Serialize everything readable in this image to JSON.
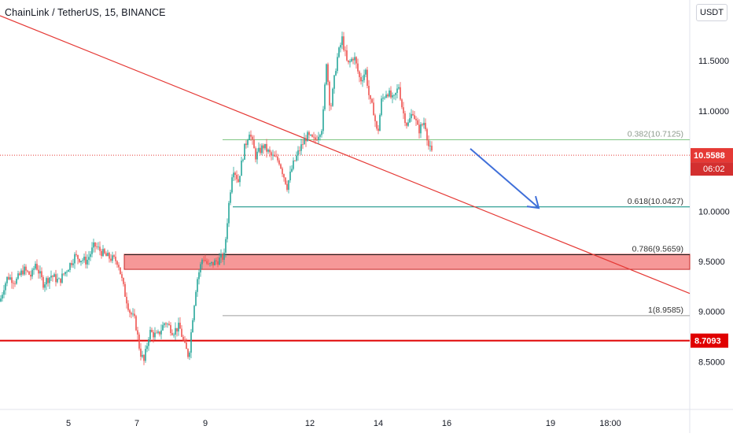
{
  "header": {
    "title": "ChainLink / TetherUS, 15, BINANCE",
    "currency_button": "USDT"
  },
  "colors": {
    "up": "#26a69a",
    "down": "#ef5350",
    "trendline": "#e53935",
    "fib_382": "#81c784",
    "fib_618": "#00897b",
    "fib_786": "#212121",
    "fib_1": "#9e9e9e",
    "support_line": "#e00000",
    "zone_fill": "#f58d8d",
    "arrow": "#3f6fd9",
    "current_price": "#e53935"
  },
  "chart_data": {
    "type": "candlestick",
    "symbol": "ChainLink / TetherUS",
    "interval": "15",
    "exchange": "BINANCE",
    "y_axis": {
      "side": "right",
      "ticks": [
        "11.5000",
        "11.0000",
        "10.0000",
        "9.5000",
        "9.0000",
        "8.5000"
      ],
      "tick_values": [
        11.5,
        11.0,
        10.0,
        9.5,
        9.0,
        8.5
      ],
      "range": [
        8.0,
        11.95
      ]
    },
    "x_axis": {
      "labels": [
        "5",
        "7",
        "9",
        "12",
        "14",
        "16",
        "19",
        "18:00"
      ]
    },
    "current_price": {
      "value": 10.5588,
      "label": "10.5588",
      "countdown": "06:02"
    },
    "support_level": {
      "value": 8.7093,
      "label": "8.7093"
    },
    "fibonacci": [
      {
        "ratio": "0.382",
        "value": 10.7125,
        "label": "0.382(10.7125)"
      },
      {
        "ratio": "0.618",
        "value": 10.0427,
        "label": "0.618(10.0427)"
      },
      {
        "ratio": "0.786",
        "value": 9.5659,
        "label": "0.786(9.5659)"
      },
      {
        "ratio": "1",
        "value": 8.9585,
        "label": "1(8.9585)"
      }
    ],
    "zone": {
      "top": 9.57,
      "bottom": 9.42
    },
    "trendline": {
      "from": [
        "start",
        11.95
      ],
      "to": [
        "end",
        9.18
      ]
    },
    "arrow": {
      "from": 10.6,
      "to": 10.04
    },
    "price_path": [
      [
        0,
        9.1
      ],
      [
        5,
        9.25
      ],
      [
        10,
        9.35
      ],
      [
        20,
        9.3
      ],
      [
        30,
        9.42
      ],
      [
        40,
        9.35
      ],
      [
        45,
        9.48
      ],
      [
        55,
        9.28
      ],
      [
        65,
        9.36
      ],
      [
        75,
        9.3
      ],
      [
        85,
        9.42
      ],
      [
        95,
        9.55
      ],
      [
        110,
        9.5
      ],
      [
        120,
        9.66
      ],
      [
        135,
        9.55
      ],
      [
        150,
        9.5
      ],
      [
        158,
        9.2
      ],
      [
        165,
        9.0
      ],
      [
        172,
        8.9
      ],
      [
        178,
        8.6
      ],
      [
        183,
        8.5
      ],
      [
        190,
        8.8
      ],
      [
        200,
        8.75
      ],
      [
        210,
        8.9
      ],
      [
        220,
        8.8
      ],
      [
        228,
        8.85
      ],
      [
        235,
        8.65
      ],
      [
        240,
        8.55
      ],
      [
        245,
        8.95
      ],
      [
        250,
        9.3
      ],
      [
        258,
        9.55
      ],
      [
        265,
        9.45
      ],
      [
        275,
        9.5
      ],
      [
        285,
        9.55
      ],
      [
        290,
        10.0
      ],
      [
        296,
        10.45
      ],
      [
        303,
        10.3
      ],
      [
        310,
        10.6
      ],
      [
        317,
        10.8
      ],
      [
        325,
        10.55
      ],
      [
        335,
        10.65
      ],
      [
        345,
        10.55
      ],
      [
        355,
        10.5
      ],
      [
        365,
        10.25
      ],
      [
        372,
        10.45
      ],
      [
        380,
        10.6
      ],
      [
        390,
        10.75
      ],
      [
        400,
        10.7
      ],
      [
        410,
        10.85
      ],
      [
        415,
        11.5
      ],
      [
        420,
        11.0
      ],
      [
        428,
        11.5
      ],
      [
        435,
        11.72
      ],
      [
        442,
        11.45
      ],
      [
        450,
        11.55
      ],
      [
        458,
        11.3
      ],
      [
        465,
        11.4
      ],
      [
        470,
        11.1
      ],
      [
        475,
        11.0
      ],
      [
        480,
        10.75
      ],
      [
        485,
        11.1
      ],
      [
        492,
        11.2
      ],
      [
        500,
        11.1
      ],
      [
        507,
        11.25
      ],
      [
        512,
        11.0
      ],
      [
        518,
        10.85
      ],
      [
        525,
        11.0
      ],
      [
        532,
        10.8
      ],
      [
        540,
        10.9
      ],
      [
        545,
        10.65
      ],
      [
        550,
        10.56
      ]
    ]
  }
}
